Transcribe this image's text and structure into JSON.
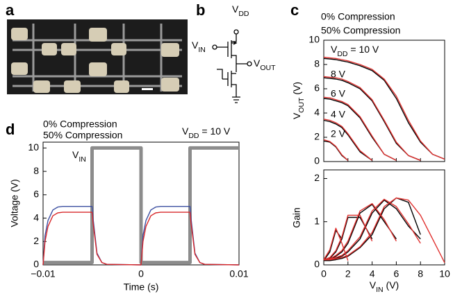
{
  "panel_labels": [
    "a",
    "b",
    "c",
    "d"
  ],
  "circuit": {
    "vdd": {
      "main": "V",
      "sub": "DD"
    },
    "vin": {
      "main": "V",
      "sub": "IN"
    },
    "vout": {
      "main": "V",
      "sub": "OUT"
    }
  },
  "chart_data": [
    {
      "type": "line",
      "xlabel": "Time (s)",
      "ylabel": "Voltage (V)",
      "xlim": [
        -0.01,
        0.01
      ],
      "xticks": [
        {
          "value": -0.01,
          "label": "−0.01"
        },
        0,
        0.01
      ],
      "ylim": [
        0,
        10.5
      ],
      "yticks": [
        0,
        2,
        4,
        6,
        8,
        10
      ],
      "x": [
        -0.01,
        -0.0098,
        -0.0095,
        -0.009,
        -0.0085,
        -0.008,
        -0.005,
        -0.0049,
        -0.0045,
        -0.004,
        -0.0035,
        0,
        0.0002,
        0.0005,
        0.001,
        0.0015,
        0.002,
        0.005,
        0.0051,
        0.0055,
        0.006,
        0.0065,
        0.01
      ],
      "annotation": {
        "main": "V",
        "sub": "DD",
        "rest": " = 10 V"
      },
      "series": [
        {
          "label": {
            "main": "V",
            "sub": "IN"
          },
          "color": "#8c8c8c",
          "linewidth": 5,
          "x": [
            -0.01,
            -0.005,
            -0.005,
            0,
            0,
            0.005,
            0.005,
            0.01
          ],
          "values": [
            0.2,
            0.2,
            10,
            10,
            0.2,
            0.2,
            10,
            10
          ]
        },
        {
          "name": "0% Compression",
          "color": "#3b4ea0",
          "values": [
            0,
            2.5,
            3.8,
            4.7,
            4.95,
            5.0,
            5.0,
            4.0,
            1.0,
            0.2,
            0.05,
            0,
            2.5,
            3.8,
            4.7,
            4.95,
            5.0,
            5.0,
            4.0,
            1.0,
            0.2,
            0.05,
            0
          ]
        },
        {
          "name": "50% Compression",
          "color": "#d8282a",
          "values": [
            0,
            2.0,
            3.3,
            4.2,
            4.45,
            4.5,
            4.5,
            3.6,
            0.9,
            0.2,
            0.05,
            0,
            2.0,
            3.3,
            4.2,
            4.45,
            4.5,
            4.5,
            3.6,
            0.9,
            0.2,
            0.05,
            0
          ]
        }
      ]
    },
    {
      "type": "line",
      "ylabel": {
        "main": "V",
        "sub": "OUT",
        "rest": " (V)"
      },
      "xlim": [
        0,
        10
      ],
      "xticks": [
        0,
        2,
        4,
        6,
        8,
        10
      ],
      "ylim": [
        0,
        10
      ],
      "yticks": [
        0,
        2,
        4,
        6,
        8,
        10
      ],
      "x": [
        0,
        0.5,
        1,
        1.5,
        2,
        3,
        4,
        5,
        6,
        7,
        8,
        9,
        10
      ],
      "annotations": [
        {
          "main": "V",
          "sub": "DD",
          "rest": " = 10 V"
        },
        "8 V",
        "6 V",
        "4 V",
        "2 V"
      ],
      "series": [
        {
          "name": "0% Compression",
          "color": "#000000",
          "lines": [
            [
              8.5,
              8.45,
              8.4,
              8.3,
              8.2,
              7.9,
              7.5,
              6.7,
              5.2,
              3.2,
              1.6,
              0.6,
              0.2
            ],
            [
              6.9,
              6.85,
              6.8,
              6.7,
              6.5,
              6.0,
              5.0,
              3.3,
              1.5,
              0.5,
              0.1,
              null,
              null
            ],
            [
              5.2,
              5.15,
              5.0,
              4.85,
              4.6,
              3.6,
              2.0,
              0.6,
              0.1,
              null,
              null,
              null,
              null
            ],
            [
              3.4,
              3.3,
              3.1,
              2.8,
              2.2,
              0.8,
              0.1,
              null,
              null,
              null,
              null,
              null,
              null
            ],
            [
              1.7,
              1.6,
              1.2,
              0.5,
              0.1,
              null,
              null,
              null,
              null,
              null,
              null,
              null,
              null
            ]
          ]
        },
        {
          "name": "50% Compression",
          "color": "#e0302e",
          "lines": [
            [
              8.6,
              8.55,
              8.5,
              8.4,
              8.3,
              8.0,
              7.6,
              6.8,
              5.4,
              3.4,
              1.7,
              0.6,
              0.2
            ],
            [
              7.0,
              6.95,
              6.9,
              6.8,
              6.6,
              6.1,
              5.1,
              3.4,
              1.6,
              0.5,
              0.1,
              null,
              null
            ],
            [
              5.3,
              5.25,
              5.1,
              4.95,
              4.7,
              3.7,
              2.1,
              0.6,
              0.1,
              null,
              null,
              null,
              null
            ],
            [
              3.5,
              3.4,
              3.2,
              2.9,
              2.3,
              0.9,
              0.1,
              null,
              null,
              null,
              null,
              null,
              null
            ],
            [
              1.8,
              1.65,
              1.25,
              0.55,
              0.1,
              null,
              null,
              null,
              null,
              null,
              null,
              null,
              null
            ]
          ]
        }
      ]
    },
    {
      "type": "line",
      "xlabel": {
        "main": "V",
        "sub": "IN",
        "rest": " (V)"
      },
      "ylabel": "Gain",
      "xlim": [
        0,
        10
      ],
      "xticks": [
        0,
        2,
        4,
        6,
        8,
        10
      ],
      "ylim": [
        0,
        2.2
      ],
      "yticks": [
        0,
        1,
        2
      ],
      "x": [
        0,
        0.5,
        1,
        1.5,
        2,
        3,
        4,
        5,
        6,
        7,
        8,
        9,
        10
      ],
      "series": [
        {
          "color": "#000000",
          "lines": [
            [
              0.1,
              0.1,
              0.12,
              0.15,
              0.2,
              0.4,
              0.7,
              1.3,
              1.55,
              1.45,
              0.7,
              null,
              null
            ],
            [
              0.1,
              0.11,
              0.15,
              0.2,
              0.3,
              0.6,
              1.2,
              1.5,
              1.3,
              0.9,
              0.6,
              null,
              null
            ],
            [
              0.1,
              0.12,
              0.2,
              0.3,
              0.5,
              1.2,
              1.4,
              1.0,
              0.6,
              null,
              null,
              null,
              null
            ],
            [
              0.1,
              0.15,
              0.3,
              0.6,
              1.1,
              1.1,
              0.6,
              null,
              null,
              null,
              null,
              null,
              null
            ],
            [
              0.1,
              0.3,
              0.8,
              0.6,
              null,
              null,
              null,
              null,
              null,
              null,
              null,
              null,
              null
            ]
          ]
        },
        {
          "color": "#e0302e",
          "lines": [
            [
              0.12,
              0.12,
              0.14,
              0.17,
              0.22,
              0.42,
              0.75,
              1.35,
              1.55,
              1.5,
              1.15,
              0.6,
              0.05
            ],
            [
              0.12,
              0.13,
              0.17,
              0.22,
              0.33,
              0.65,
              1.25,
              1.52,
              1.35,
              0.95,
              0.5,
              null,
              null
            ],
            [
              0.12,
              0.14,
              0.22,
              0.33,
              0.55,
              1.25,
              1.42,
              1.05,
              0.55,
              null,
              null,
              null,
              null
            ],
            [
              0.12,
              0.17,
              0.33,
              0.65,
              1.15,
              1.15,
              0.55,
              null,
              null,
              null,
              null,
              null,
              null
            ],
            [
              0.12,
              0.35,
              0.85,
              0.5,
              0.1,
              null,
              null,
              null,
              null,
              null,
              null,
              null,
              null
            ]
          ]
        }
      ]
    }
  ]
}
